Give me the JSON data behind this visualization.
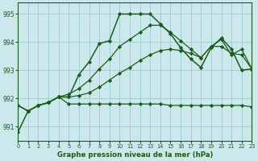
{
  "title": "Graphe pression niveau de la mer (hPa)",
  "bg_color": "#cce8ec",
  "grid_color": "#99cccc",
  "line_color": "#1a5c1a",
  "xlim": [
    0,
    23
  ],
  "ylim": [
    990.5,
    995.4
  ],
  "yticks": [
    991,
    992,
    993,
    994,
    995
  ],
  "xticks": [
    0,
    1,
    2,
    3,
    4,
    5,
    6,
    7,
    8,
    9,
    10,
    11,
    12,
    13,
    14,
    15,
    16,
    17,
    18,
    19,
    20,
    21,
    22,
    23
  ],
  "s1_x": [
    0,
    1,
    2,
    3,
    4,
    5,
    6,
    7,
    8,
    9,
    10,
    11,
    12,
    13,
    14,
    15,
    16,
    17,
    18,
    19,
    20,
    21,
    22,
    23
  ],
  "s1_y": [
    990.8,
    991.55,
    991.75,
    991.85,
    992.05,
    992.05,
    992.85,
    993.3,
    993.95,
    994.05,
    995.0,
    995.0,
    995.0,
    995.0,
    994.65,
    994.3,
    993.8,
    993.4,
    993.1,
    993.8,
    994.15,
    993.75,
    993.0,
    993.05
  ],
  "s2_x": [
    0,
    1,
    2,
    3,
    4,
    5,
    6,
    7,
    8,
    9,
    10,
    11,
    12,
    13,
    14,
    15,
    16,
    17,
    18,
    19,
    20,
    21,
    22,
    23
  ],
  "s2_y": [
    991.75,
    991.55,
    991.75,
    991.85,
    992.05,
    991.8,
    991.8,
    991.8,
    991.8,
    991.8,
    991.8,
    991.8,
    991.8,
    991.8,
    991.8,
    991.75,
    991.75,
    991.75,
    991.75,
    991.75,
    991.75,
    991.75,
    991.75,
    991.7
  ],
  "s3_x": [
    0,
    1,
    2,
    3,
    4,
    5,
    6,
    7,
    8,
    9,
    10,
    11,
    12,
    13,
    14,
    15,
    16,
    17,
    18,
    19,
    20,
    21,
    22,
    23
  ],
  "s3_y": [
    991.75,
    991.55,
    991.75,
    991.85,
    992.05,
    992.15,
    992.35,
    992.65,
    993.05,
    993.4,
    993.85,
    994.1,
    994.35,
    994.6,
    994.6,
    994.35,
    994.05,
    993.75,
    993.45,
    993.85,
    994.1,
    993.55,
    993.75,
    993.05
  ],
  "s4_x": [
    0,
    1,
    2,
    3,
    4,
    5,
    6,
    7,
    8,
    9,
    10,
    11,
    12,
    13,
    14,
    15,
    16,
    17,
    18,
    19,
    20,
    21,
    22,
    23
  ],
  "s4_y": [
    991.75,
    991.55,
    991.75,
    991.85,
    992.05,
    992.05,
    992.1,
    992.2,
    992.4,
    992.65,
    992.9,
    993.1,
    993.35,
    993.55,
    993.7,
    993.75,
    993.7,
    993.6,
    993.45,
    993.85,
    993.85,
    993.6,
    993.55,
    993.05
  ]
}
